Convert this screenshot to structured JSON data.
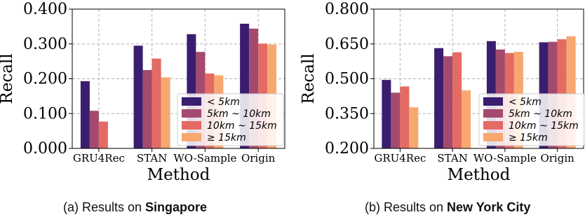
{
  "colors": {
    "lt5": "#3a1d6e",
    "5to10": "#a44a6e",
    "10to15": "#e46a64",
    "ge15": "#f7a870",
    "grid": "#b0b0b0"
  },
  "legend": [
    "< 5km",
    "5km ~ 10km",
    "10km ~ 15km",
    "≥ 15km"
  ],
  "captions": [
    {
      "prefix": "(a) Results on ",
      "bold": "Singapore"
    },
    {
      "prefix": "(b) Results on ",
      "bold": "New York City"
    }
  ],
  "chart_data": [
    {
      "type": "bar",
      "xlabel": "Method",
      "ylabel": "Recall",
      "categories": [
        "GRU4Rec",
        "STAN",
        "WO-Sample",
        "Origin"
      ],
      "ylim": [
        0.0,
        0.4
      ],
      "yticks": [
        "0.000",
        "0.100",
        "0.200",
        "0.300",
        "0.400"
      ],
      "grid": true,
      "legend_position": "right",
      "series": [
        {
          "name": "< 5km",
          "values": [
            0.193,
            0.295,
            0.328,
            0.358
          ]
        },
        {
          "name": "5km ~ 10km",
          "values": [
            0.108,
            0.225,
            0.277,
            0.344
          ]
        },
        {
          "name": "10km ~ 15km",
          "values": [
            0.077,
            0.258,
            0.215,
            0.301
          ]
        },
        {
          "name": "≥ 15km",
          "values": [
            null,
            0.204,
            0.21,
            0.298
          ]
        }
      ]
    },
    {
      "type": "bar",
      "xlabel": "Method",
      "ylabel": "Recall",
      "categories": [
        "GRU4Rec",
        "STAN",
        "WO-Sample",
        "Origin"
      ],
      "ylim": [
        0.2,
        0.8
      ],
      "yticks": [
        "0.200",
        "0.350",
        "0.500",
        "0.650",
        "0.800"
      ],
      "grid": true,
      "legend_position": "right",
      "series": [
        {
          "name": "< 5km",
          "values": [
            0.495,
            0.632,
            0.662,
            0.657
          ]
        },
        {
          "name": "5km ~ 10km",
          "values": [
            0.44,
            0.597,
            0.626,
            0.659
          ]
        },
        {
          "name": "10km ~ 15km",
          "values": [
            0.467,
            0.614,
            0.611,
            0.67
          ]
        },
        {
          "name": "≥ 15km",
          "values": [
            0.377,
            0.45,
            0.616,
            0.683
          ]
        }
      ]
    }
  ]
}
